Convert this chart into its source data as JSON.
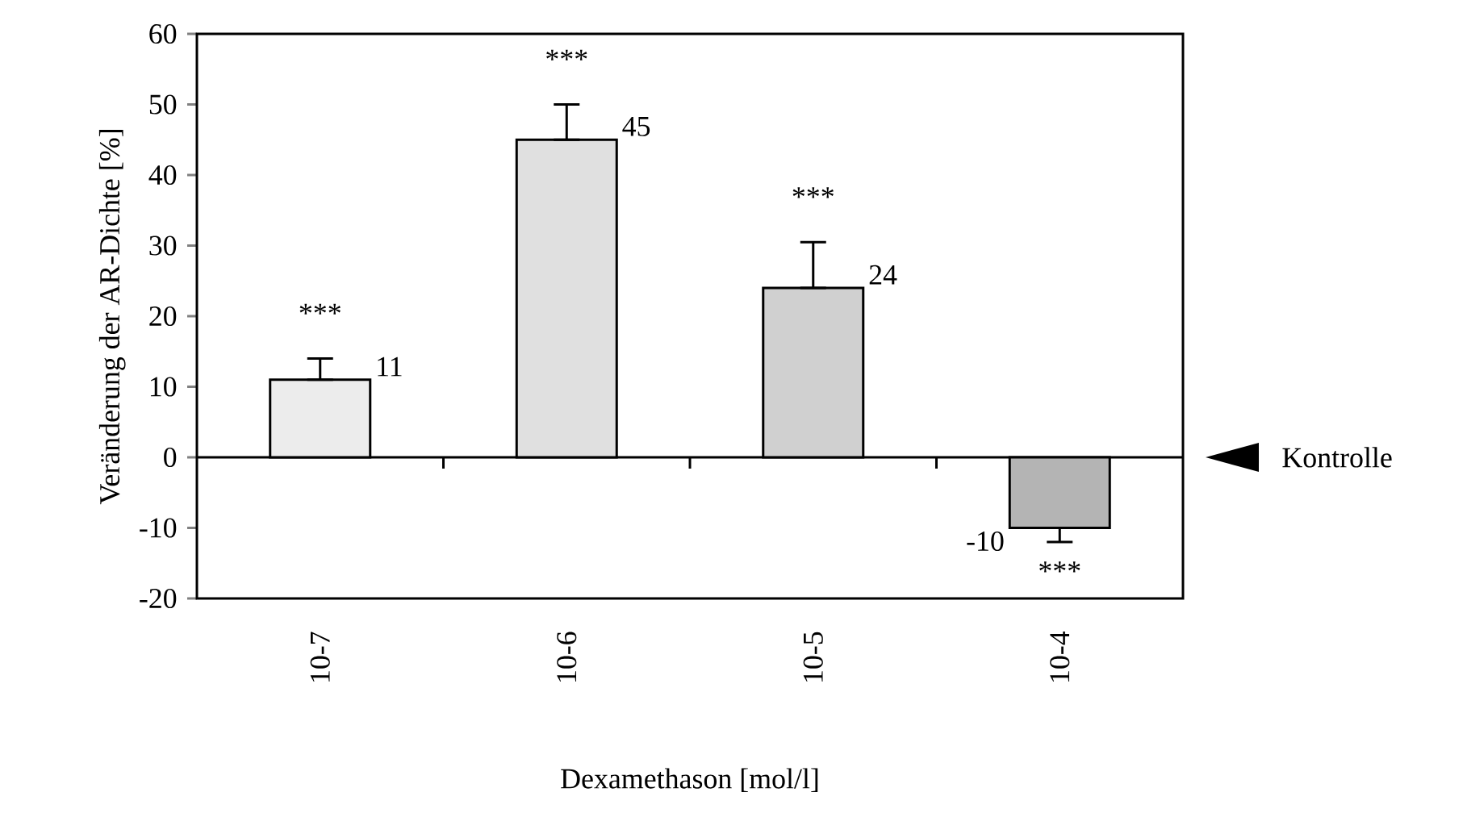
{
  "chart_data": {
    "type": "bar",
    "xlabel": "Dexamethason [mol/l]",
    "ylabel": "Veränderung der AR-Dichte [%]",
    "categories": [
      "10-7",
      "10-6",
      "10-5",
      "10-4"
    ],
    "values": [
      11,
      45,
      24,
      -10
    ],
    "colors": [
      "#ececec",
      "#e0e0e0",
      "#d0d0d0",
      "#b4b4b4"
    ],
    "errors": [
      [
        11,
        14
      ],
      [
        45,
        50
      ],
      [
        24,
        30.5
      ],
      [
        -12,
        -10
      ]
    ],
    "data_labels": true,
    "ylim": [
      -20,
      60
    ],
    "yticks": [
      -20,
      -10,
      0,
      10,
      20,
      30,
      40,
      50,
      60
    ],
    "ref_lines": [
      {
        "axis": "y",
        "value": 0,
        "label": "Kontrolle"
      }
    ],
    "annotations": [
      "***",
      "***",
      "***",
      "***"
    ]
  }
}
